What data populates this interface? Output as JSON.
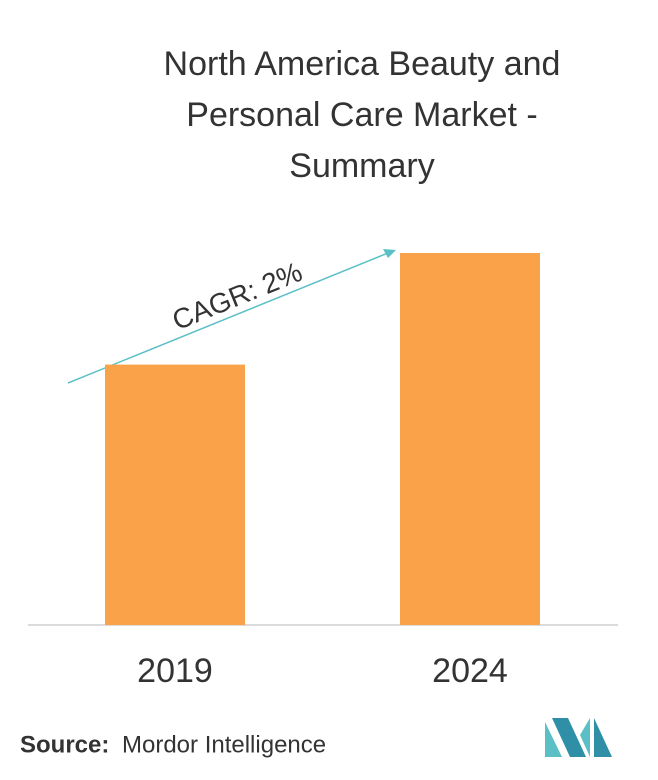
{
  "chart_data": {
    "type": "bar",
    "title": [
      "North America Beauty and",
      "Personal Care Market -",
      "Summary"
    ],
    "categories": [
      "2019",
      "2024"
    ],
    "values": [
      70,
      100
    ],
    "color": "#f9a24a",
    "ylim": [
      0,
      100
    ],
    "annotation": "CAGR: 2%",
    "source_label": "Source:",
    "source": "Mordor Intelligence"
  }
}
